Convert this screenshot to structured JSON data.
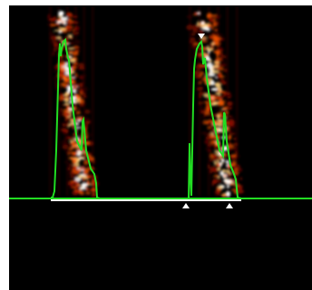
{
  "display": {
    "background_color": "#000000",
    "envelope_color": "#22dd22",
    "baseline_color": "#ffffff",
    "marker_color": "#ffffff",
    "heat_colors": [
      "#3a0000",
      "#a01000",
      "#ff5a00",
      "#ffd27a",
      "#ffffff"
    ]
  },
  "markers": [
    {
      "name": "selection-start-marker",
      "icon": "triangle-up-icon"
    },
    {
      "name": "selection-end-marker",
      "icon": "triangle-up-icon"
    },
    {
      "name": "peak-marker",
      "icon": "triangle-down-icon"
    }
  ],
  "chart_data": {
    "type": "heatmap",
    "note": "",
    "calls": [
      {
        "start": 0.13,
        "peak": 0.18,
        "end": 0.3
      },
      {
        "start": 0.59,
        "peak": 0.65,
        "end": 0.75
      }
    ]
  }
}
